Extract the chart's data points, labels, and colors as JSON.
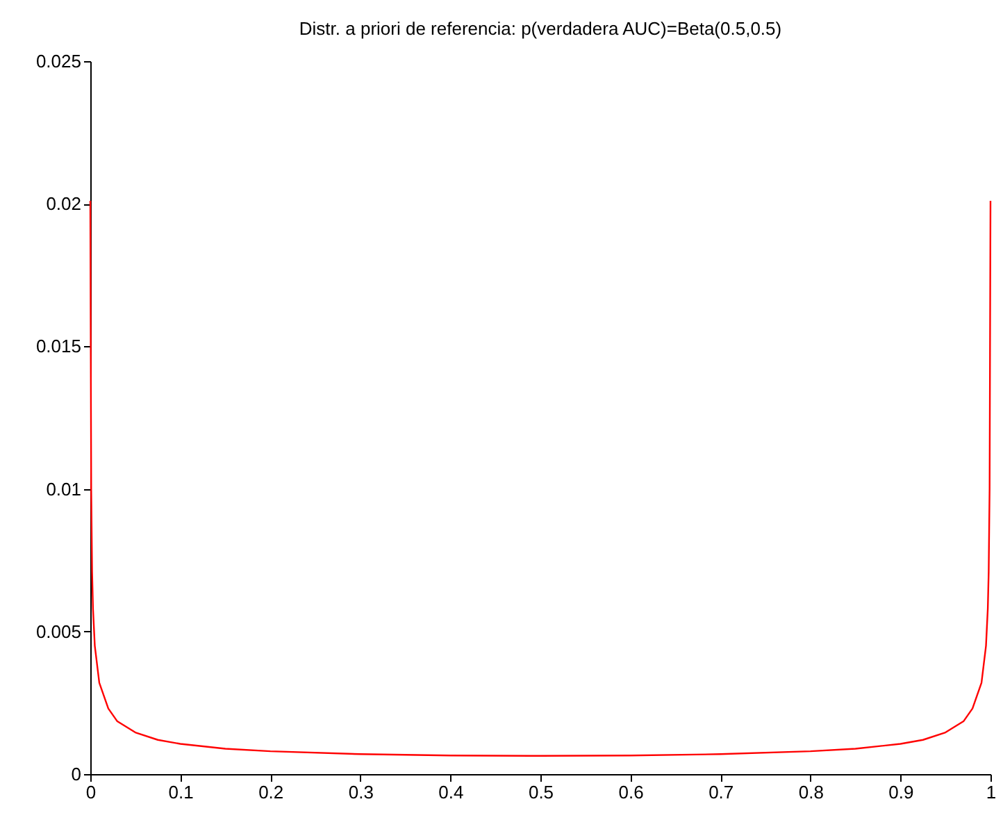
{
  "chart_data": {
    "type": "line",
    "title": "Distr. a priori de referencia: p(verdadera AUC)=Beta(0.5,0.5)",
    "x": [
      0,
      0.001,
      0.002,
      0.003,
      0.005,
      0.01,
      0.02,
      0.03,
      0.05,
      0.075,
      0.1,
      0.15,
      0.2,
      0.3,
      0.4,
      0.5,
      0.6,
      0.7,
      0.8,
      0.85,
      0.9,
      0.925,
      0.95,
      0.97,
      0.98,
      0.99,
      0.995,
      0.997,
      0.998,
      0.999,
      1
    ],
    "series": [
      {
        "color": "#ff0000",
        "values": [
          0.0201,
          0.01,
          0.0071,
          0.0058,
          0.0045,
          0.0032,
          0.0023,
          0.00185,
          0.00146,
          0.0012,
          0.00106,
          0.00089,
          0.0008,
          0.0007,
          0.00065,
          0.00064,
          0.00065,
          0.0007,
          0.0008,
          0.00089,
          0.00106,
          0.0012,
          0.00146,
          0.00185,
          0.0023,
          0.0032,
          0.0045,
          0.0058,
          0.0071,
          0.01,
          0.0201
        ]
      }
    ],
    "xlim": [
      0,
      1
    ],
    "xticks": [
      0,
      0.1,
      0.2,
      0.3,
      0.4,
      0.5,
      0.6,
      0.7,
      0.8,
      0.9,
      1
    ],
    "ylim": [
      0,
      0.025
    ],
    "yticks": [
      0,
      0.005,
      0.01,
      0.015,
      0.02,
      0.025
    ],
    "grid": false,
    "legend": false,
    "marker": "none",
    "line_style": "solid"
  }
}
